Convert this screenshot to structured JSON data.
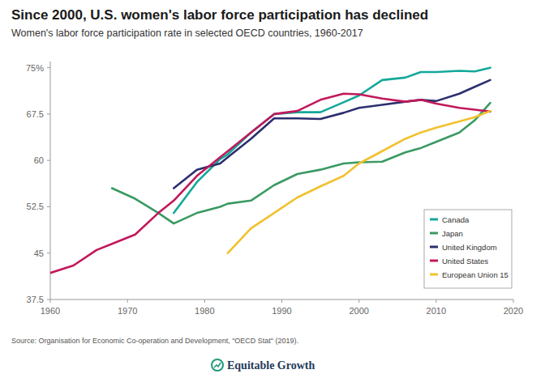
{
  "chart_data": {
    "type": "line",
    "title": "Since 2000, U.S. women's labor force participation has declined",
    "subtitle": "Women's labor force participation rate in selected OECD countries, 1960-2017",
    "source": "Source: Organisation for Economic Co-operation and Development, \"OECD Stat\" (2019).",
    "credit": "Equitable Growth",
    "x": [
      1960,
      1963,
      1966,
      1968,
      1971,
      1974,
      1976,
      1979,
      1982,
      1983,
      1986,
      1989,
      1992,
      1995,
      1998,
      2000,
      2003,
      2006,
      2008,
      2010,
      2013,
      2015,
      2017
    ],
    "series": [
      {
        "name": "Canada",
        "color": "#14a89a",
        "values": [
          null,
          null,
          null,
          null,
          null,
          null,
          51.5,
          56.5,
          60.2,
          61,
          64.5,
          67.5,
          67.8,
          67.8,
          69.4,
          70.5,
          73,
          73.4,
          74.3,
          74.3,
          74.5,
          74.4,
          75
        ]
      },
      {
        "name": "Japan",
        "color": "#3a9a62",
        "values": [
          null,
          null,
          null,
          55.5,
          53.8,
          51.5,
          49.8,
          51.5,
          52.5,
          53,
          53.5,
          56,
          57.8,
          58.5,
          59.5,
          59.7,
          59.8,
          61.3,
          62,
          63,
          64.5,
          66.5,
          69.3
        ]
      },
      {
        "name": "United Kingdom",
        "color": "#2c2f6e",
        "values": [
          null,
          null,
          null,
          null,
          null,
          null,
          55.5,
          58.5,
          59.5,
          60.5,
          63.5,
          66.8,
          66.8,
          66.7,
          67.7,
          68.5,
          69,
          69.5,
          69.8,
          69.6,
          70.8,
          71.9,
          73
        ]
      },
      {
        "name": "United States",
        "color": "#c2185b",
        "values": [
          41.8,
          43,
          45.5,
          46.5,
          48,
          51.5,
          53.5,
          57.5,
          60.5,
          61.5,
          64.5,
          67.5,
          68,
          69.8,
          70.8,
          70.7,
          70,
          69.5,
          69.8,
          69.2,
          68.5,
          68.2,
          67.9
        ]
      },
      {
        "name": "European Union 15",
        "color": "#f2c12e",
        "values": [
          null,
          null,
          null,
          null,
          null,
          null,
          null,
          null,
          null,
          45,
          49,
          51.5,
          54,
          55.8,
          57.5,
          59.5,
          61.5,
          63.5,
          64.5,
          65.3,
          66.3,
          67,
          68
        ]
      }
    ],
    "xlim": [
      1960,
      2020
    ],
    "xticks": [
      1960,
      1970,
      1980,
      1990,
      2000,
      2010,
      2020
    ],
    "ylim": [
      37.5,
      76
    ],
    "yticks": [
      37.5,
      45,
      52.5,
      60,
      67.5,
      {
        "value": 75,
        "label": "75%"
      }
    ],
    "grid": false,
    "legend": "bottom-right"
  }
}
